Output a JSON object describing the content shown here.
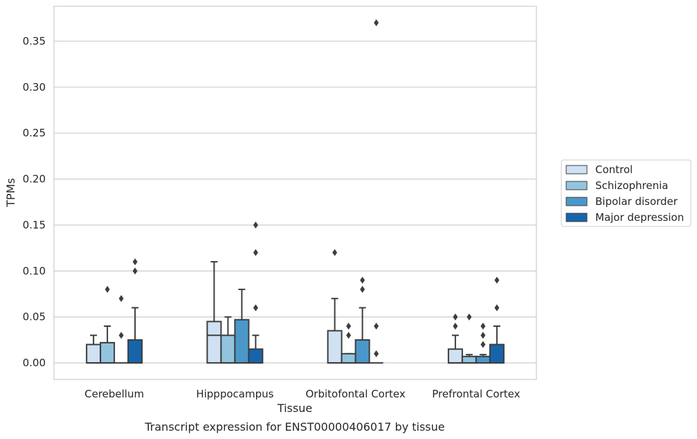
{
  "caption": "Transcript expression for ENST00000406017 by tissue",
  "chart_data": {
    "type": "box",
    "xlabel": "Tissue",
    "ylabel": "TPMs",
    "ylim": [
      -0.018,
      0.388
    ],
    "yticks": [
      0.0,
      0.05,
      0.1,
      0.15,
      0.2,
      0.25,
      0.3,
      0.35
    ],
    "ytick_labels": [
      "0.00",
      "0.05",
      "0.10",
      "0.15",
      "0.20",
      "0.25",
      "0.30",
      "0.35"
    ],
    "grid": "horizontal",
    "legend_position": "right-outside",
    "categories": [
      "Cerebellum",
      "Hipppocampus",
      "Orbitofontal Cortex",
      "Prefrontal Cortex"
    ],
    "series": [
      {
        "name": "Control",
        "color": "#cfe1f2",
        "boxes": [
          {
            "q1": 0.0,
            "median": 0.0,
            "q3": 0.02,
            "whisker_low": 0.0,
            "whisker_high": 0.03,
            "outliers": []
          },
          {
            "q1": 0.0,
            "median": 0.03,
            "q3": 0.045,
            "whisker_low": 0.0,
            "whisker_high": 0.11,
            "outliers": []
          },
          {
            "q1": 0.0,
            "median": 0.0,
            "q3": 0.035,
            "whisker_low": 0.0,
            "whisker_high": 0.07,
            "outliers": [
              0.12
            ]
          },
          {
            "q1": 0.0,
            "median": 0.0,
            "q3": 0.015,
            "whisker_low": 0.0,
            "whisker_high": 0.03,
            "outliers": [
              0.04,
              0.05
            ]
          }
        ]
      },
      {
        "name": "Schizophrenia",
        "color": "#93c4de",
        "boxes": [
          {
            "q1": 0.0,
            "median": 0.0,
            "q3": 0.022,
            "whisker_low": 0.0,
            "whisker_high": 0.04,
            "outliers": [
              0.08
            ]
          },
          {
            "q1": 0.0,
            "median": 0.0,
            "q3": 0.03,
            "whisker_low": 0.0,
            "whisker_high": 0.05,
            "outliers": []
          },
          {
            "q1": 0.0,
            "median": 0.0,
            "q3": 0.01,
            "whisker_low": 0.0,
            "whisker_high": 0.01,
            "outliers": [
              0.03,
              0.04
            ]
          },
          {
            "q1": 0.0,
            "median": 0.0,
            "q3": 0.007,
            "whisker_low": 0.0,
            "whisker_high": 0.009,
            "outliers": [
              0.05
            ]
          }
        ]
      },
      {
        "name": "Bipolar disorder",
        "color": "#4a98c9",
        "boxes": [
          {
            "q1": 0.0,
            "median": 0.0,
            "q3": 0.0,
            "whisker_low": 0.0,
            "whisker_high": 0.0,
            "outliers": [
              0.03,
              0.07
            ]
          },
          {
            "q1": 0.0,
            "median": 0.0,
            "q3": 0.047,
            "whisker_low": 0.0,
            "whisker_high": 0.08,
            "outliers": []
          },
          {
            "q1": 0.0,
            "median": 0.0,
            "q3": 0.025,
            "whisker_low": 0.0,
            "whisker_high": 0.06,
            "outliers": [
              0.08,
              0.09
            ]
          },
          {
            "q1": 0.0,
            "median": 0.0,
            "q3": 0.007,
            "whisker_low": 0.0,
            "whisker_high": 0.009,
            "outliers": [
              0.02,
              0.03,
              0.04
            ]
          }
        ]
      },
      {
        "name": "Major depression",
        "color": "#1764ab",
        "boxes": [
          {
            "q1": 0.0,
            "median": 0.0,
            "q3": 0.025,
            "whisker_low": 0.0,
            "whisker_high": 0.06,
            "outliers": [
              0.1,
              0.11
            ]
          },
          {
            "q1": 0.0,
            "median": 0.0,
            "q3": 0.015,
            "whisker_low": 0.0,
            "whisker_high": 0.03,
            "outliers": [
              0.06,
              0.12,
              0.15
            ]
          },
          {
            "q1": 0.0,
            "median": 0.0,
            "q3": 0.0,
            "whisker_low": 0.0,
            "whisker_high": 0.0,
            "outliers": [
              0.01,
              0.04,
              0.37
            ]
          },
          {
            "q1": 0.0,
            "median": 0.0,
            "q3": 0.02,
            "whisker_low": 0.0,
            "whisker_high": 0.04,
            "outliers": [
              0.06,
              0.09
            ]
          }
        ]
      }
    ]
  }
}
